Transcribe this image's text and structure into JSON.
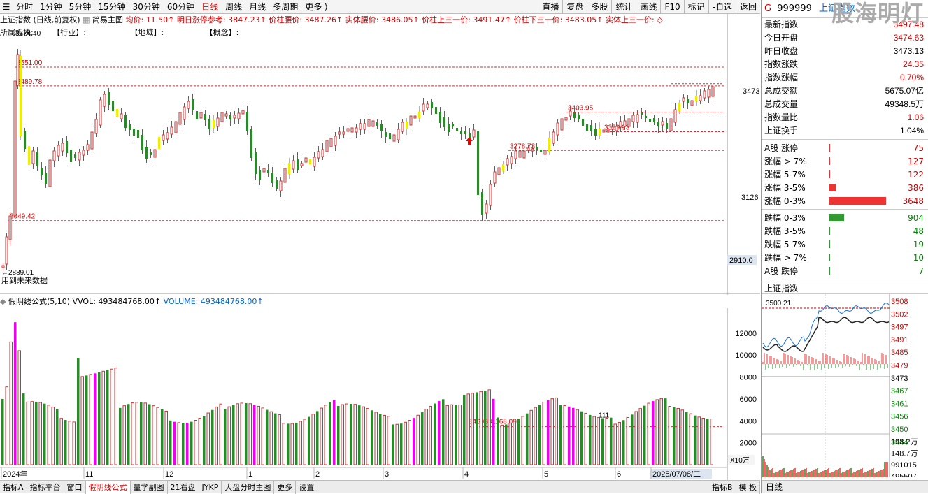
{
  "topbar": {
    "tabs": [
      "分时",
      "1分钟",
      "5分钟",
      "15分钟",
      "30分钟",
      "60分钟",
      "日线",
      "周线",
      "月线",
      "多周期",
      "更多 ⟩"
    ],
    "active_tab": "日线",
    "right_buttons": [
      "直播",
      "复盘",
      "多股",
      "统计",
      "画线",
      "F10",
      "标记",
      "-自选",
      "返回"
    ]
  },
  "info": {
    "prefix": "上证指数 (日线,前复权)",
    "main": "简易主图",
    "junjia": "均价: 11.50↑",
    "mingri": "明日涨停参考: 3847.23↑",
    "jiazhu": "价柱腰价: 3487.26↑",
    "shiti": "实体腰价: 3486.05↑",
    "shang": "价柱上三一价: 3491.47↑",
    "xia": "价柱下三一价: 3483.05↑",
    "shiti_shang": "实体上三一价: ◇"
  },
  "subinfo": [
    "所属板块:",
    "【行业】:",
    "【地域】:",
    "【概念】:"
  ],
  "chart_labels": {
    "high": "3674.40",
    "p3551": "3551.00",
    "p3489": "3489.78",
    "p3049": "3049.42",
    "low": "←2889.01",
    "future": "用到未来数据",
    "p3403": "3403.95",
    "p3339": "3339.93",
    "p3278": "3278.73",
    "axis_3473": "3473",
    "axis_3126": "3126",
    "axis_2910": "2910.0",
    "vol_mark": "3469831168.00",
    "vol_count": "111"
  },
  "chart_data": {
    "type": "bar",
    "title": "上证指数 (日线,前复权)",
    "price_marks": [
      3674.4,
      3551.0,
      3489.78,
      3403.95,
      3339.93,
      3278.73,
      3049.42,
      2889.01
    ],
    "y_axis": [
      3473,
      3126,
      2910.0
    ],
    "vol_axis": [
      12000,
      10000,
      8000,
      6000,
      4000,
      2000
    ],
    "vol_unit": "X10万",
    "x_labels": [
      "2024年",
      "11",
      "12",
      "1",
      "2",
      "3",
      "4",
      "5",
      "6",
      "2025/07/08/二"
    ]
  },
  "vol": {
    "formula": "假阴线公式(5,10)",
    "vvol": "VVOL: 493484768.00↑",
    "volume": "VOLUME: 493484768.00↑",
    "axis": [
      "12000",
      "10000",
      "8000",
      "6000",
      "4000",
      "2000"
    ],
    "unit": "X10万"
  },
  "xaxis": [
    "2024年",
    "11",
    "12",
    "1",
    "2",
    "3",
    "4",
    "5",
    "6",
    "2025/07/08/二"
  ],
  "bottombar": [
    "指标A",
    "指标平台",
    "窗口",
    "假阴线公式",
    "量学副图",
    "21看盘",
    "JYKP",
    "大盘分时主图",
    "更多",
    "设置"
  ],
  "bottombar_active": "假阴线公式",
  "bottombar_right": [
    "指标B",
    "模 板"
  ],
  "rp": {
    "prefix": "G",
    "code": "999999",
    "name": "上证指数",
    "logo": "股海明灯",
    "stats": [
      {
        "k": "最新指数",
        "v": "3497.48",
        "c": "red"
      },
      {
        "k": "今日开盘",
        "v": "3474.63",
        "c": "red"
      },
      {
        "k": "昨日收盘",
        "v": "3473.13",
        "c": "blk"
      },
      {
        "k": "指数涨跌",
        "v": "24.35",
        "c": "red"
      },
      {
        "k": "指数涨幅",
        "v": "0.70%",
        "c": "red"
      },
      {
        "k": "总成交额",
        "v": "5675.07亿",
        "c": "blk"
      },
      {
        "k": "总成交量",
        "v": "49348.5万",
        "c": "blk"
      },
      {
        "k": "指数量比",
        "v": "1.06",
        "c": "red"
      },
      {
        "k": "上证换手",
        "v": "1.04%",
        "c": "blk"
      }
    ],
    "breadth": [
      {
        "k": "A股 涨停",
        "v": "75",
        "c": "red",
        "w": 1
      },
      {
        "k": "涨幅 > 7%",
        "v": "127",
        "c": "red",
        "w": 2
      },
      {
        "k": "涨幅 5-7%",
        "v": "122",
        "c": "red",
        "w": 2
      },
      {
        "k": "涨幅 3-5%",
        "v": "386",
        "c": "red",
        "w": 10
      },
      {
        "k": "涨幅 0-3%",
        "v": "3648",
        "c": "red",
        "w": 82
      },
      {
        "k": "跌幅 0-3%",
        "v": "904",
        "c": "green",
        "w": 22
      },
      {
        "k": "跌幅 3-5%",
        "v": "48",
        "c": "green",
        "w": 1
      },
      {
        "k": "跌幅 5-7%",
        "v": "19",
        "c": "green",
        "w": 1
      },
      {
        "k": "跌幅 > 7%",
        "v": "10",
        "c": "green",
        "w": 1
      },
      {
        "k": "A股 跌停",
        "v": "7",
        "c": "green",
        "w": 1
      }
    ],
    "mini_title": "上证指数",
    "mini_mark": "3500.21",
    "mini_axis": [
      "3508",
      "3502",
      "3497",
      "3491",
      "3485",
      "3479",
      "3473",
      "3467",
      "3461",
      "3456",
      "3450",
      "3444"
    ],
    "mini_vol_axis": [
      "198.2万",
      "148.7万",
      "991015",
      "495507"
    ],
    "bottom": "日线"
  }
}
